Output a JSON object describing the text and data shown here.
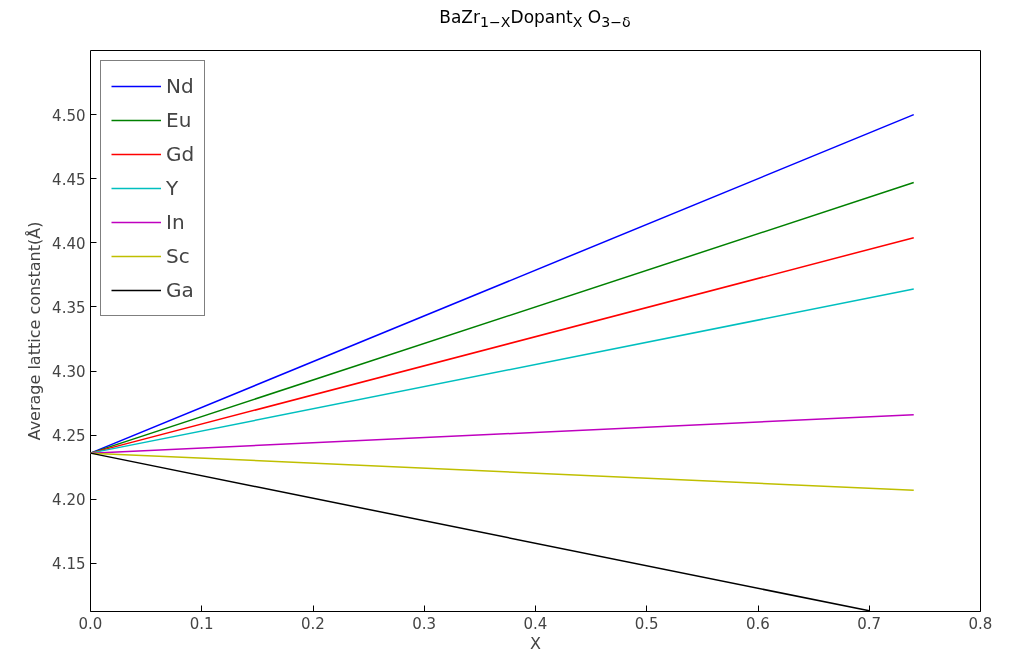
{
  "chart_data": {
    "type": "line",
    "title": "BaZr$_{1−X}$Dopant$_{X}$ O$_{3−δ}$",
    "xlabel": "X",
    "ylabel": "Average lattice constant(Å)",
    "x": [
      0,
      0.74
    ],
    "series": [
      {
        "name": "Nd",
        "color": "#0000ff",
        "values": [
          4.236,
          4.5
        ]
      },
      {
        "name": "Eu",
        "color": "#008000",
        "values": [
          4.236,
          4.447
        ]
      },
      {
        "name": "Gd",
        "color": "#ff0000",
        "values": [
          4.236,
          4.404
        ]
      },
      {
        "name": "Y",
        "color": "#00bfbf",
        "values": [
          4.236,
          4.364
        ]
      },
      {
        "name": "In",
        "color": "#bf00bf",
        "values": [
          4.236,
          4.266
        ]
      },
      {
        "name": "Sc",
        "color": "#bfbf00",
        "values": [
          4.236,
          4.207
        ]
      },
      {
        "name": "Ga",
        "color": "#000000",
        "x": [
          0,
          0.7
        ],
        "values": [
          4.236,
          4.113
        ]
      }
    ],
    "xlim": [
      0,
      0.8
    ],
    "xticks": [
      {
        "value": 0,
        "label": "0.0"
      },
      0.1,
      0.2,
      0.3,
      0.4,
      0.5,
      0.6,
      0.7,
      0.8
    ],
    "ylim": [
      4.1125,
      4.55
    ],
    "yticks": [
      4.15,
      {
        "value": 4.2,
        "label": "4.20"
      },
      4.25,
      {
        "value": 4.3,
        "label": "4.30"
      },
      4.35,
      {
        "value": 4.4,
        "label": "4.40"
      },
      4.45,
      {
        "value": 4.5,
        "label": "4.50"
      }
    ],
    "grid": false,
    "legend": "top left",
    "marker": "none",
    "line_style": "solid"
  }
}
